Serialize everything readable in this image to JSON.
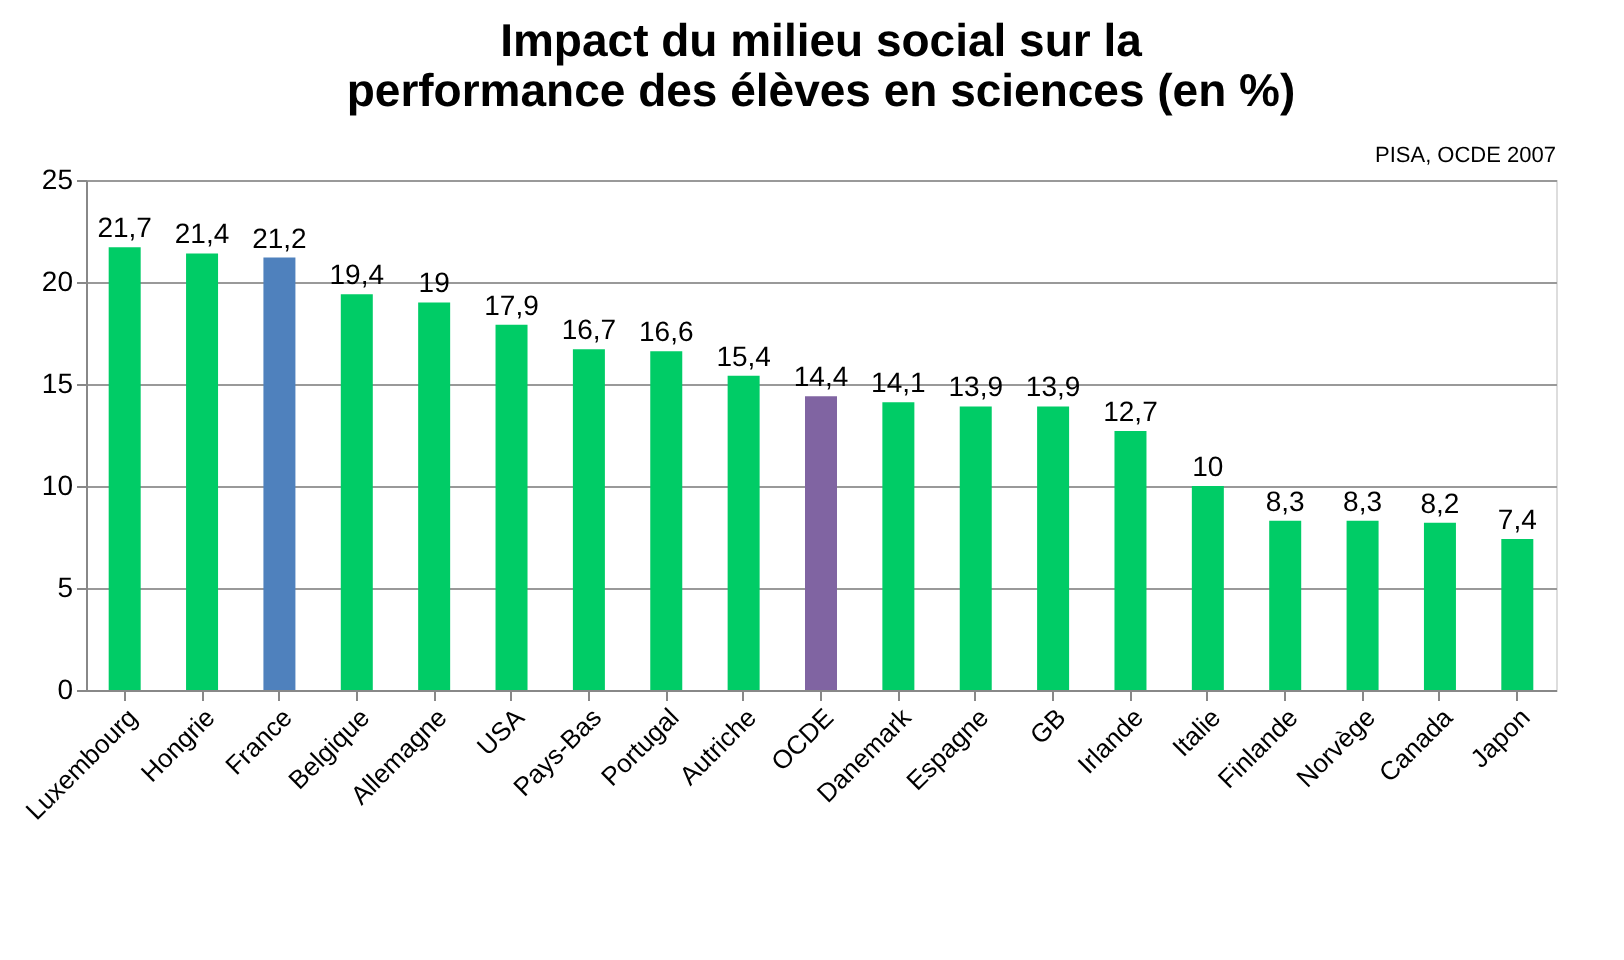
{
  "chart_data": {
    "type": "bar",
    "title": "Impact du milieu social sur la performance des élèves en sciences (en %)",
    "categories": [
      "Luxembourg",
      "Hongrie",
      "France",
      "Belgique",
      "Allemagne",
      "USA",
      "Pays-Bas",
      "Portugal",
      "Autriche",
      "OCDE",
      "Danemark",
      "Espagne",
      "GB",
      "Irlande",
      "Italie",
      "Finlande",
      "Norvège",
      "Canada",
      "Japon"
    ],
    "values": [
      21.7,
      21.4,
      21.2,
      19.4,
      19,
      17.9,
      16.7,
      16.6,
      15.4,
      14.4,
      14.1,
      13.9,
      13.9,
      12.7,
      10,
      8.3,
      8.3,
      8.2,
      7.4
    ],
    "colors": [
      "#00cc66",
      "#00cc66",
      "#4f81bd",
      "#00cc66",
      "#00cc66",
      "#00cc66",
      "#00cc66",
      "#00cc66",
      "#00cc66",
      "#8064a2",
      "#00cc66",
      "#00cc66",
      "#00cc66",
      "#00cc66",
      "#00cc66",
      "#00cc66",
      "#00cc66",
      "#00cc66",
      "#00cc66"
    ],
    "value_labels": [
      "21,7",
      "21,4",
      "21,2",
      "19,4",
      "19",
      "17,9",
      "16,7",
      "16,6",
      "15,4",
      "14,4",
      "14,1",
      "13,9",
      "13,9",
      "12,7",
      "10",
      "8,3",
      "8,3",
      "8,2",
      "7,4"
    ],
    "ylim": [
      0,
      25
    ],
    "yticks": [
      0,
      5,
      10,
      15,
      20,
      25
    ],
    "grid": "y",
    "annotations": [
      "PISA, OCDE 2007"
    ]
  }
}
